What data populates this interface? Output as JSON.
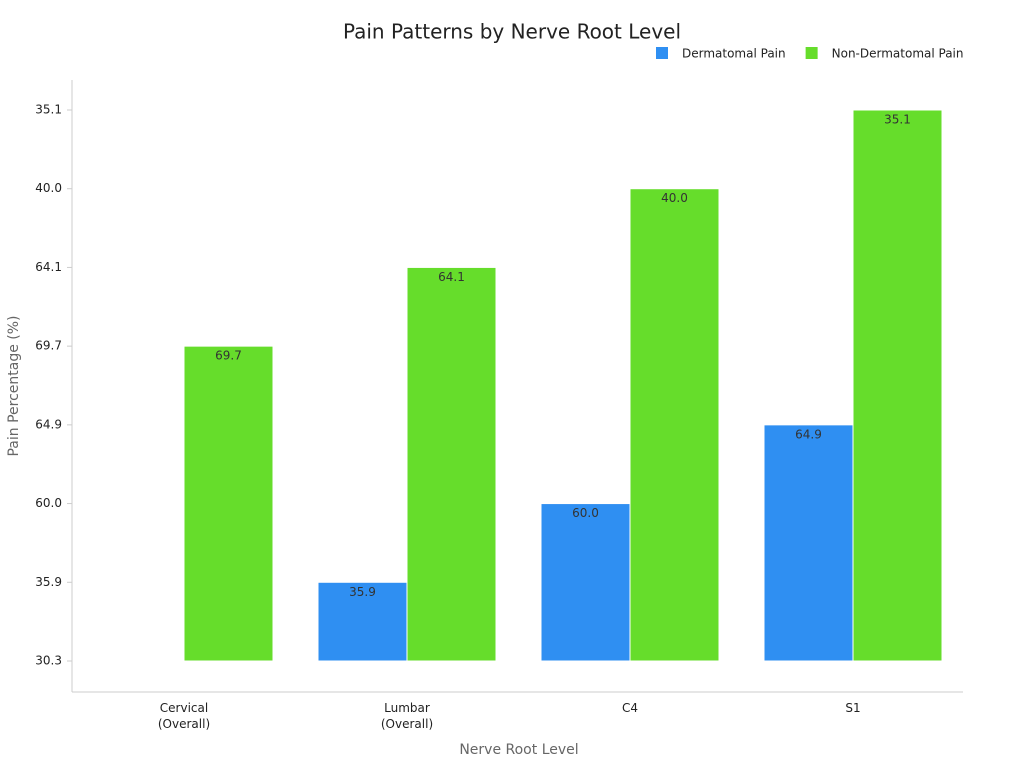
{
  "chart_data": {
    "type": "bar",
    "title": "Pain Patterns by Nerve Root Level",
    "x_label": "Nerve Root Level",
    "y_label": "Pain Percentage (%)",
    "categories": [
      "Cervical\n(Overall)",
      "Lumbar\n(Overall)",
      "C4",
      "S1"
    ],
    "series": [
      {
        "name": "Dermatomal Pain",
        "color": "#2f8ff2",
        "values": [
          null,
          35.9,
          60,
          64.9
        ],
        "value_labels": [
          null,
          "35.9",
          "60.0",
          "64.9"
        ]
      },
      {
        "name": "Non-Dermatomal Pain",
        "color": "#66dd2b",
        "values": [
          69.7,
          64.1,
          40,
          35.1
        ],
        "value_labels": [
          "69.7",
          "64.1",
          "40.0",
          "35.1"
        ]
      }
    ],
    "yscale": "ordinal",
    "yticks": [
      30.3,
      35.9,
      {
        "value": 60,
        "label": "60.0"
      },
      64.9,
      69.7,
      64.1,
      {
        "value": 40,
        "label": "40.0"
      },
      35.1
    ],
    "legend": "top-right"
  }
}
